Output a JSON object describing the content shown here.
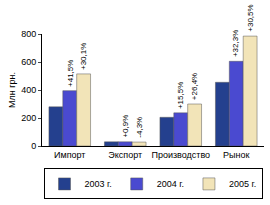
{
  "chart_data": {
    "type": "bar",
    "y_label": "Млн грн.",
    "categories": [
      "Импорт",
      "Экспорт",
      "Производство",
      "Рынок"
    ],
    "series": [
      {
        "name": "2003 г.",
        "color": "#24408e",
        "values": [
          280,
          30,
          205,
          455
        ]
      },
      {
        "name": "2004 г.",
        "color": "#4a4ad0",
        "values": [
          395,
          30,
          237,
          605
        ]
      },
      {
        "name": "2005 г.",
        "color": "#f2e4b8",
        "values": [
          515,
          28,
          300,
          785
        ]
      }
    ],
    "annotations": [
      {
        "category": "Импорт",
        "series": "2004 г.",
        "text": "+41,5%"
      },
      {
        "category": "Импорт",
        "series": "2005 г.",
        "text": "+30,1%"
      },
      {
        "category": "Экспорт",
        "series": "2004 г.",
        "text": "+0,9%"
      },
      {
        "category": "Экспорт",
        "series": "2005 г.",
        "text": "-4,3%"
      },
      {
        "category": "Производство",
        "series": "2004 г.",
        "text": "+15,5%"
      },
      {
        "category": "Производство",
        "series": "2005 г.",
        "text": "+26,4%"
      },
      {
        "category": "Рынок",
        "series": "2004 г.",
        "text": "+32,3%"
      },
      {
        "category": "Рынок",
        "series": "2005 г.",
        "text": "+30,5%"
      }
    ],
    "ylim": [
      0,
      800
    ],
    "yticks": [
      0,
      200,
      400,
      600,
      800
    ],
    "grid": false,
    "legend": "bottom"
  }
}
